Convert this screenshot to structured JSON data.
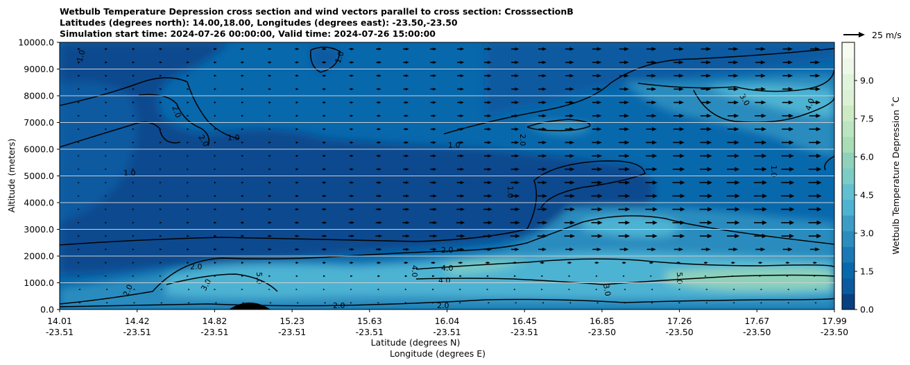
{
  "title_lines": [
    "Wetbulb Temperature Depression cross section and wind vectors parallel to cross section: CrosssectionB",
    "Latitudes (degrees north): 14.00,18.00, Longitudes (degrees east): -23.50,-23.50",
    "Simulation start time: 2024-07-26 00:00:00, Valid time: 2024-07-26 15:00:00"
  ],
  "chart_data": {
    "type": "heatmap",
    "ylabel": "Altitude (meters)",
    "xlabel_line1": "Latitude (degrees N)",
    "xlabel_line2": "Longitude (degrees E)",
    "ylim": [
      0,
      10000
    ],
    "yticks": [
      "0.0",
      "1000.0",
      "2000.0",
      "3000.0",
      "4000.0",
      "5000.0",
      "6000.0",
      "7000.0",
      "8000.0",
      "9000.0",
      "10000.0"
    ],
    "ytick_values": [
      0,
      1000,
      2000,
      3000,
      4000,
      5000,
      6000,
      7000,
      8000,
      9000,
      10000
    ],
    "xticks_lat": [
      "14.01",
      "14.42",
      "14.82",
      "15.23",
      "15.63",
      "16.04",
      "16.45",
      "16.85",
      "17.26",
      "17.67",
      "17.99"
    ],
    "xticks_lon": [
      "-23.51",
      "-23.51",
      "-23.51",
      "-23.51",
      "-23.51",
      "-23.51",
      "-23.51",
      "-23.50",
      "-23.50",
      "-23.50",
      "-23.50"
    ],
    "xlim_index": [
      0,
      10
    ],
    "grid": "horizontal",
    "colorbar": {
      "label": "Wetbulb Temperature Depression ˚C",
      "range": [
        0,
        10.5
      ],
      "ticks": [
        "0.0",
        "1.5",
        "3.0",
        "4.5",
        "6.0",
        "7.5",
        "9.0"
      ],
      "tick_values": [
        0,
        1.5,
        3,
        4.5,
        6,
        7.5,
        9
      ],
      "colors": [
        "#084081",
        "#0b5aa0",
        "#0868ac",
        "#1a78b6",
        "#2b8cbe",
        "#3d9cc6",
        "#4eb3d3",
        "#62bfd0",
        "#7bccc4",
        "#8ed2bb",
        "#a8ddb5",
        "#bbe5c0",
        "#ccebc5",
        "#dbf1d5",
        "#e0f3db",
        "#eef8e9",
        "#f7fcf0"
      ]
    },
    "contour_labels": [
      "1.0",
      "1.0",
      "1.0",
      "1.0",
      "2.0",
      "2.0",
      "2.0",
      "2.0",
      "2.0",
      "2.0",
      "2.0",
      "2.0",
      "3.0",
      "3.0",
      "3.0",
      "4.0",
      "4.0",
      "4.0",
      "4.0",
      "5.0",
      "5.0",
      "1.0",
      "1.0",
      "1.0"
    ],
    "wind_key": "25 m/s",
    "wind_profile": [
      {
        "z": 9500,
        "u": [
          4,
          4,
          5,
          6,
          8,
          10,
          12,
          14,
          15,
          15,
          14
        ]
      },
      {
        "z": 8500,
        "u": [
          3,
          3,
          4,
          5,
          7,
          10,
          12,
          14,
          15,
          16,
          16
        ]
      },
      {
        "z": 7500,
        "u": [
          2,
          3,
          3,
          4,
          6,
          9,
          12,
          14,
          16,
          17,
          17
        ]
      },
      {
        "z": 6500,
        "u": [
          1,
          2,
          3,
          4,
          6,
          9,
          12,
          15,
          17,
          18,
          18
        ]
      },
      {
        "z": 5500,
        "u": [
          1,
          1,
          2,
          4,
          7,
          10,
          13,
          16,
          18,
          19,
          19
        ]
      },
      {
        "z": 4500,
        "u": [
          1,
          1,
          3,
          5,
          8,
          11,
          14,
          17,
          19,
          20,
          20
        ]
      },
      {
        "z": 3500,
        "u": [
          1,
          2,
          4,
          6,
          9,
          12,
          15,
          17,
          19,
          20,
          20
        ]
      },
      {
        "z": 2500,
        "u": [
          2,
          3,
          5,
          7,
          10,
          13,
          15,
          17,
          18,
          19,
          19
        ]
      },
      {
        "z": 1500,
        "u": [
          1,
          2,
          3,
          4,
          5,
          5,
          4,
          3,
          2,
          2,
          2
        ]
      },
      {
        "z": 500,
        "u": [
          -1,
          -1,
          -1,
          -1,
          1,
          1,
          -1,
          -1,
          -1,
          -1,
          -1
        ]
      }
    ]
  }
}
